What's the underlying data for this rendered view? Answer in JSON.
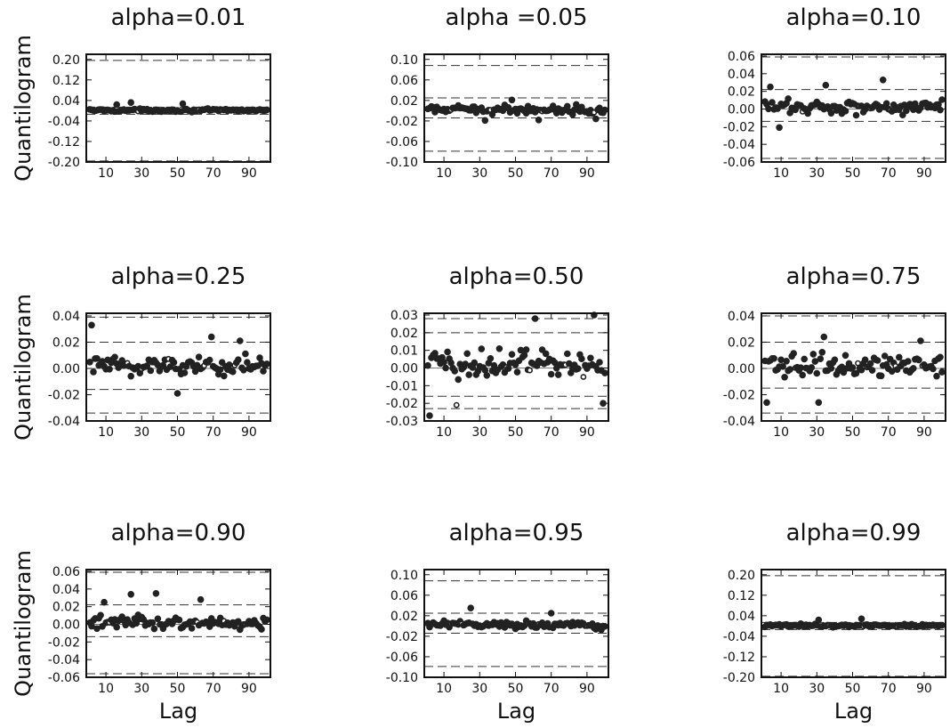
{
  "chart_data": [
    {
      "type": "scatter",
      "title": "alpha=0.01",
      "ylabel": "Quantilogram",
      "xlabel": "",
      "x_ticks": [
        10,
        30,
        50,
        70,
        90
      ],
      "xlim": [
        1,
        100
      ],
      "ylim": [
        -0.2,
        0.22
      ],
      "y_ticks": [
        0.2,
        0.12,
        0.04,
        -0.04,
        -0.12,
        -0.2
      ],
      "y_tick_labels": [
        "0.20",
        "0.12",
        "0.04",
        "-0.04",
        "-0.12",
        "-0.20"
      ],
      "bands": [
        0.196,
        0.014,
        -0.014,
        -0.196
      ],
      "spread": 0.008,
      "outliers": [
        [
          24,
          0.032
        ],
        [
          53,
          0.027
        ],
        [
          16,
          0.024
        ]
      ],
      "open_lags": [
        28,
        62,
        75
      ]
    },
    {
      "type": "scatter",
      "title": "alpha =0.05",
      "ylabel": "",
      "xlabel": "",
      "x_ticks": [
        10,
        30,
        50,
        70,
        90
      ],
      "xlim": [
        1,
        100
      ],
      "ylim": [
        -0.1,
        0.11
      ],
      "y_ticks": [
        0.1,
        0.06,
        0.02,
        -0.02,
        -0.06,
        -0.1
      ],
      "y_tick_labels": [
        "0.10",
        "0.06",
        "0.02",
        "-0.02",
        "-0.06",
        "-0.10"
      ],
      "bands": [
        0.088,
        0.025,
        -0.014,
        -0.079
      ],
      "spread": 0.011,
      "outliers": [
        [
          33,
          -0.019
        ],
        [
          95,
          -0.016
        ],
        [
          63,
          -0.018
        ],
        [
          48,
          0.021
        ]
      ],
      "open_lags": [
        14,
        36,
        65,
        94
      ]
    },
    {
      "type": "scatter",
      "title": "alpha=0.10",
      "ylabel": "",
      "xlabel": "",
      "x_ticks": [
        10,
        30,
        50,
        70,
        90
      ],
      "xlim": [
        1,
        100
      ],
      "ylim": [
        -0.06,
        0.062
      ],
      "y_ticks": [
        0.06,
        0.04,
        0.02,
        0.0,
        -0.02,
        -0.04,
        -0.06
      ],
      "y_tick_labels": [
        "0.06",
        "0.04",
        "0.02",
        "0.00",
        "-0.02",
        "-0.04",
        "-0.06"
      ],
      "bands": [
        0.059,
        0.022,
        -0.014,
        -0.056
      ],
      "spread": 0.012,
      "outliers": [
        [
          67,
          0.033
        ],
        [
          9,
          -0.021
        ],
        [
          4,
          0.025
        ],
        [
          35,
          0.027
        ]
      ],
      "open_lags": [
        22,
        54,
        60,
        71
      ]
    },
    {
      "type": "scatter",
      "title": "alpha=0.25",
      "ylabel": "Quantilogram",
      "xlabel": "",
      "x_ticks": [
        10,
        30,
        50,
        70,
        90
      ],
      "xlim": [
        1,
        100
      ],
      "ylim": [
        -0.04,
        0.042
      ],
      "y_ticks": [
        0.04,
        0.02,
        0.0,
        -0.02,
        -0.04
      ],
      "y_tick_labels": [
        "0.04",
        "0.02",
        "0.00",
        "-0.02",
        "-0.04"
      ],
      "bands": [
        0.039,
        0.02,
        -0.016,
        -0.034
      ],
      "spread": 0.012,
      "outliers": [
        [
          2,
          0.033
        ],
        [
          50,
          -0.019
        ],
        [
          69,
          0.024
        ],
        [
          85,
          0.021
        ]
      ],
      "open_lags": [
        22,
        30,
        45,
        65,
        82
      ]
    },
    {
      "type": "scatter",
      "title": "alpha=0.50",
      "ylabel": "",
      "xlabel": "",
      "x_ticks": [
        10,
        30,
        50,
        70,
        90
      ],
      "xlim": [
        1,
        100
      ],
      "ylim": [
        -0.03,
        0.031
      ],
      "y_ticks": [
        0.03,
        0.02,
        0.01,
        0.0,
        -0.01,
        -0.02,
        -0.03
      ],
      "y_tick_labels": [
        "0.03",
        "0.02",
        "0.01",
        "0.00",
        "-0.01",
        "-0.02",
        "-0.03"
      ],
      "bands": [
        0.028,
        0.02,
        -0.016,
        -0.023
      ],
      "spread": 0.013,
      "outliers": [
        [
          2,
          -0.027
        ],
        [
          17,
          -0.021
        ],
        [
          61,
          0.028
        ],
        [
          94,
          0.03
        ],
        [
          99,
          -0.02
        ]
      ],
      "open_lags": [
        17,
        45,
        58,
        78,
        88
      ]
    },
    {
      "type": "scatter",
      "title": "alpha=0.75",
      "ylabel": "",
      "xlabel": "",
      "x_ticks": [
        10,
        30,
        50,
        70,
        90
      ],
      "xlim": [
        1,
        100
      ],
      "ylim": [
        -0.04,
        0.042
      ],
      "y_ticks": [
        0.04,
        0.02,
        0.0,
        -0.02,
        -0.04
      ],
      "y_tick_labels": [
        "0.04",
        "0.02",
        "0.00",
        "-0.02",
        "-0.04"
      ],
      "bands": [
        0.04,
        0.02,
        -0.015,
        -0.034
      ],
      "spread": 0.012,
      "outliers": [
        [
          31,
          -0.026
        ],
        [
          2,
          -0.026
        ],
        [
          34,
          0.024
        ],
        [
          88,
          0.021
        ]
      ],
      "open_lags": [
        5,
        18,
        53,
        58,
        74,
        89
      ]
    },
    {
      "type": "scatter",
      "title": "alpha=0.90",
      "ylabel": "Quantilogram",
      "xlabel": "Lag",
      "x_ticks": [
        10,
        30,
        50,
        70,
        90
      ],
      "xlim": [
        1,
        100
      ],
      "ylim": [
        -0.06,
        0.062
      ],
      "y_ticks": [
        0.06,
        0.04,
        0.02,
        0.0,
        -0.02,
        -0.04,
        -0.06
      ],
      "y_tick_labels": [
        "0.06",
        "0.04",
        "0.02",
        "0.00",
        "-0.02",
        "-0.04",
        "-0.06"
      ],
      "bands": [
        0.059,
        0.022,
        -0.014,
        -0.056
      ],
      "spread": 0.01,
      "outliers": [
        [
          24,
          0.034
        ],
        [
          38,
          0.035
        ],
        [
          63,
          0.028
        ],
        [
          9,
          0.025
        ]
      ],
      "open_lags": [
        12,
        40,
        61,
        76,
        88
      ]
    },
    {
      "type": "scatter",
      "title": "alpha=0.95",
      "ylabel": "",
      "xlabel": "Lag",
      "x_ticks": [
        10,
        30,
        50,
        70,
        90
      ],
      "xlim": [
        1,
        100
      ],
      "ylim": [
        -0.1,
        0.11
      ],
      "y_ticks": [
        0.1,
        0.06,
        0.02,
        -0.02,
        -0.06,
        -0.1
      ],
      "y_tick_labels": [
        "0.10",
        "0.06",
        "0.02",
        "-0.02",
        "-0.06",
        "-0.10"
      ],
      "bands": [
        0.088,
        0.025,
        -0.014,
        -0.079
      ],
      "spread": 0.01,
      "outliers": [
        [
          25,
          0.035
        ],
        [
          70,
          0.025
        ]
      ],
      "open_lags": [
        14,
        20,
        57,
        63,
        90
      ]
    },
    {
      "type": "scatter",
      "title": "alpha=0.99",
      "ylabel": "",
      "xlabel": "Lag",
      "x_ticks": [
        10,
        30,
        50,
        70,
        90
      ],
      "xlim": [
        1,
        100
      ],
      "ylim": [
        -0.2,
        0.22
      ],
      "y_ticks": [
        0.2,
        0.12,
        0.04,
        -0.04,
        -0.12,
        -0.2
      ],
      "y_tick_labels": [
        "0.20",
        "0.12",
        "0.04",
        "-0.04",
        "-0.12",
        "-0.20"
      ],
      "bands": [
        0.196,
        0.014,
        -0.014,
        -0.196
      ],
      "spread": 0.008,
      "outliers": [
        [
          55,
          0.028
        ],
        [
          31,
          0.024
        ]
      ],
      "open_lags": [
        37,
        56,
        75
      ]
    }
  ]
}
